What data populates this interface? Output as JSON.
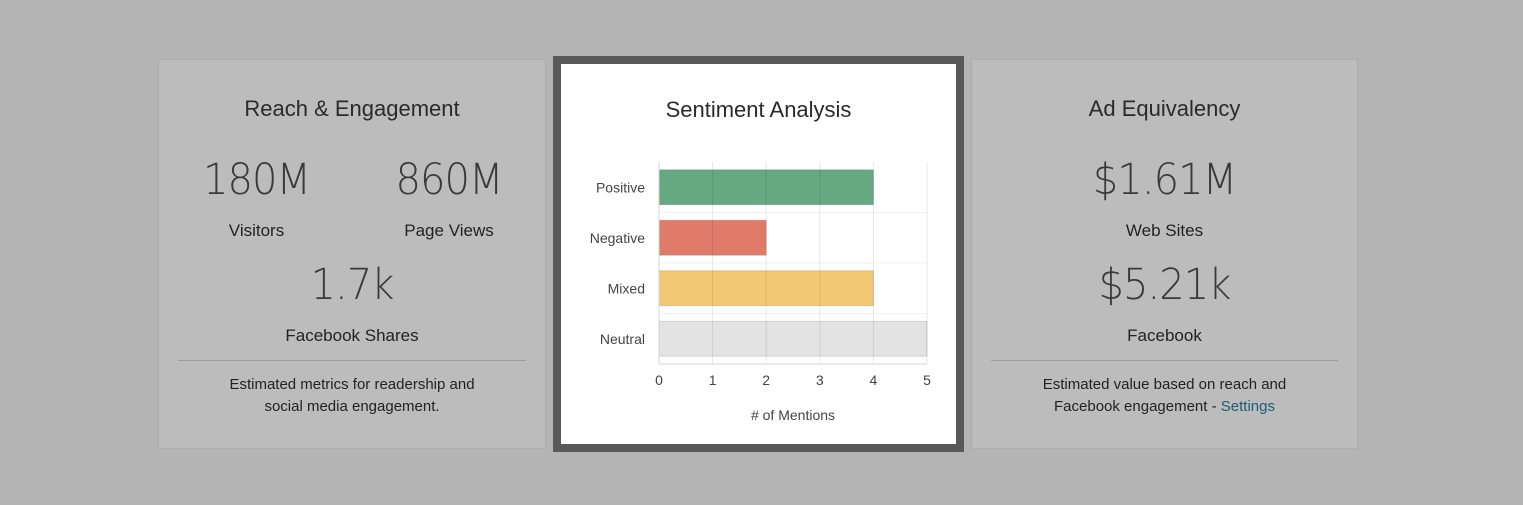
{
  "reach": {
    "title": "Reach & Engagement",
    "visitors_value": "180M",
    "visitors_label": "Visitors",
    "pageviews_value": "860M",
    "pageviews_label": "Page Views",
    "shares_value": "1.7k",
    "shares_label": "Facebook Shares",
    "note_line1": "Estimated metrics for readership and",
    "note_line2": "social media engagement."
  },
  "sentiment": {
    "title": "Sentiment Analysis"
  },
  "ad": {
    "title": "Ad Equivalency",
    "websites_value": "$1.61M",
    "websites_label": "Web Sites",
    "facebook_value": "$5.21k",
    "facebook_label": "Facebook",
    "note_line1": "Estimated value based on reach and",
    "note_line2": "Facebook engagement - ",
    "settings_link": "Settings"
  },
  "colors": {
    "positive": "#66a882",
    "negative": "#e07b6a",
    "mixed": "#f3c874",
    "neutral": "#e3e3e3",
    "link": "#1d5c78"
  },
  "chart_data": {
    "type": "bar",
    "orientation": "horizontal",
    "title": "Sentiment Analysis",
    "categories": [
      "Positive",
      "Negative",
      "Mixed",
      "Neutral"
    ],
    "values": [
      4,
      2,
      4,
      5
    ],
    "colors": [
      "#66a882",
      "#e07b6a",
      "#f3c874",
      "#e3e3e3"
    ],
    "xlabel": "# of Mentions",
    "ylabel": "",
    "xlim": [
      0,
      5
    ],
    "xticks": [
      "0",
      "1",
      "2",
      "3",
      "4",
      "5"
    ],
    "grid": true,
    "legend": "none"
  }
}
